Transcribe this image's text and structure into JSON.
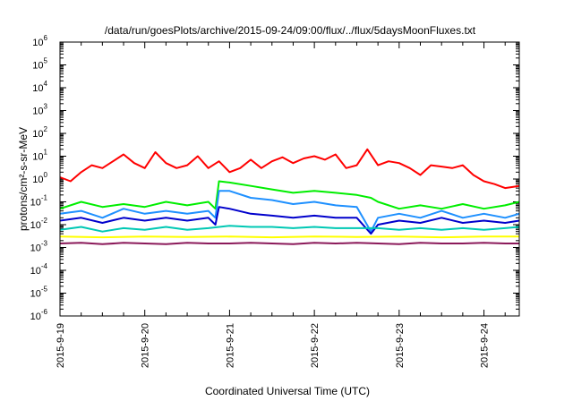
{
  "chart_data": {
    "type": "line",
    "title": "/data/run/goesPlots/archive/2015-09-24/09:00/flux/../flux/5daysMoonFluxes.txt",
    "xlabel": "Coordinated Universal Time (UTC)",
    "ylabel": "protons/cm²-s-sr-MeV",
    "y_scale": "log",
    "ylim": [
      1e-06,
      1000000.0
    ],
    "xlim": [
      "2015-09-19T00:00",
      "2015-09-24T10:00"
    ],
    "grid": false,
    "legend": "none",
    "x_tick_labels": [
      "2015-9-19",
      "2015-9-20",
      "2015-9-21",
      "2015-9-22",
      "2015-9-23",
      "2015-9-24"
    ],
    "x_ticks": [
      "2015-09-19",
      "2015-09-20",
      "2015-09-21",
      "2015-09-22",
      "2015-09-23",
      "2015-09-24"
    ],
    "y_ticks": [
      {
        "value": 1000000.0,
        "base": "10",
        "exp": "6"
      },
      {
        "value": 100000.0,
        "base": "10",
        "exp": "5"
      },
      {
        "value": 10000.0,
        "base": "10",
        "exp": "4"
      },
      {
        "value": 1000.0,
        "base": "10",
        "exp": "3"
      },
      {
        "value": 100.0,
        "base": "10",
        "exp": "2"
      },
      {
        "value": 10.0,
        "base": "10",
        "exp": "1"
      },
      {
        "value": 1.0,
        "base": "10",
        "exp": "0"
      },
      {
        "value": 0.1,
        "base": "10",
        "exp": "-1"
      },
      {
        "value": 0.01,
        "base": "10",
        "exp": "-2"
      },
      {
        "value": 0.001,
        "base": "10",
        "exp": "-3"
      },
      {
        "value": 0.0001,
        "base": "10",
        "exp": "-4"
      },
      {
        "value": 1e-05,
        "base": "10",
        "exp": "-5"
      },
      {
        "value": 1e-06,
        "base": "10",
        "exp": "-6"
      }
    ],
    "series": [
      {
        "color": "#ff0000",
        "x": [
          "2015-09-19T00:00",
          "2015-09-19T03:00",
          "2015-09-19T06:00",
          "2015-09-19T09:00",
          "2015-09-19T12:00",
          "2015-09-19T15:00",
          "2015-09-19T18:00",
          "2015-09-19T21:00",
          "2015-09-20T00:00",
          "2015-09-20T03:00",
          "2015-09-20T06:00",
          "2015-09-20T09:00",
          "2015-09-20T12:00",
          "2015-09-20T15:00",
          "2015-09-20T18:00",
          "2015-09-20T21:00",
          "2015-09-21T00:00",
          "2015-09-21T03:00",
          "2015-09-21T06:00",
          "2015-09-21T09:00",
          "2015-09-21T12:00",
          "2015-09-21T15:00",
          "2015-09-21T18:00",
          "2015-09-21T21:00",
          "2015-09-22T00:00",
          "2015-09-22T03:00",
          "2015-09-22T06:00",
          "2015-09-22T09:00",
          "2015-09-22T12:00",
          "2015-09-22T15:00",
          "2015-09-22T18:00",
          "2015-09-22T21:00",
          "2015-09-23T00:00",
          "2015-09-23T03:00",
          "2015-09-23T06:00",
          "2015-09-23T09:00",
          "2015-09-23T12:00",
          "2015-09-23T15:00",
          "2015-09-23T18:00",
          "2015-09-23T21:00",
          "2015-09-24T00:00",
          "2015-09-24T03:00",
          "2015-09-24T06:00",
          "2015-09-24T10:00"
        ],
        "values": [
          1.2,
          0.8,
          2.0,
          4.0,
          3.0,
          6.0,
          12.0,
          5.0,
          3.0,
          15.0,
          5.0,
          3.0,
          4.0,
          10.0,
          3.0,
          6.0,
          2.0,
          3.0,
          7.0,
          3.0,
          6.0,
          9.0,
          5.0,
          8.0,
          10.0,
          7.0,
          12.0,
          3.0,
          4.0,
          20.0,
          4.0,
          6.0,
          5.0,
          3.0,
          1.5,
          4.0,
          3.5,
          3.0,
          4.0,
          1.5,
          0.8,
          0.6,
          0.4,
          0.5
        ]
      },
      {
        "color": "#00ee00",
        "x": [
          "2015-09-19T00:00",
          "2015-09-19T06:00",
          "2015-09-19T12:00",
          "2015-09-19T18:00",
          "2015-09-20T00:00",
          "2015-09-20T06:00",
          "2015-09-20T12:00",
          "2015-09-20T18:00",
          "2015-09-20T20:00",
          "2015-09-20T21:00",
          "2015-09-21T00:00",
          "2015-09-21T06:00",
          "2015-09-21T12:00",
          "2015-09-21T18:00",
          "2015-09-22T00:00",
          "2015-09-22T06:00",
          "2015-09-22T12:00",
          "2015-09-22T16:00",
          "2015-09-22T18:00",
          "2015-09-23T00:00",
          "2015-09-23T06:00",
          "2015-09-23T12:00",
          "2015-09-23T18:00",
          "2015-09-24T00:00",
          "2015-09-24T06:00",
          "2015-09-24T10:00"
        ],
        "values": [
          0.05,
          0.1,
          0.06,
          0.08,
          0.06,
          0.1,
          0.07,
          0.1,
          0.05,
          0.8,
          0.7,
          0.5,
          0.35,
          0.25,
          0.3,
          0.25,
          0.2,
          0.15,
          0.1,
          0.05,
          0.07,
          0.05,
          0.08,
          0.05,
          0.07,
          0.1
        ]
      },
      {
        "color": "#1e90ff",
        "x": [
          "2015-09-19T00:00",
          "2015-09-19T06:00",
          "2015-09-19T12:00",
          "2015-09-19T18:00",
          "2015-09-20T00:00",
          "2015-09-20T06:00",
          "2015-09-20T12:00",
          "2015-09-20T18:00",
          "2015-09-20T20:00",
          "2015-09-20T21:00",
          "2015-09-21T00:00",
          "2015-09-21T06:00",
          "2015-09-21T12:00",
          "2015-09-21T18:00",
          "2015-09-22T00:00",
          "2015-09-22T06:00",
          "2015-09-22T12:00",
          "2015-09-22T16:00",
          "2015-09-22T18:00",
          "2015-09-23T00:00",
          "2015-09-23T06:00",
          "2015-09-23T12:00",
          "2015-09-23T18:00",
          "2015-09-24T00:00",
          "2015-09-24T06:00",
          "2015-09-24T10:00"
        ],
        "values": [
          0.03,
          0.04,
          0.02,
          0.05,
          0.03,
          0.04,
          0.03,
          0.04,
          0.02,
          0.3,
          0.3,
          0.15,
          0.12,
          0.08,
          0.1,
          0.07,
          0.06,
          0.005,
          0.02,
          0.03,
          0.02,
          0.04,
          0.02,
          0.03,
          0.02,
          0.03
        ]
      },
      {
        "color": "#0000cc",
        "x": [
          "2015-09-19T00:00",
          "2015-09-19T06:00",
          "2015-09-19T12:00",
          "2015-09-19T18:00",
          "2015-09-20T00:00",
          "2015-09-20T06:00",
          "2015-09-20T12:00",
          "2015-09-20T18:00",
          "2015-09-20T20:00",
          "2015-09-20T21:00",
          "2015-09-21T00:00",
          "2015-09-21T06:00",
          "2015-09-21T12:00",
          "2015-09-21T18:00",
          "2015-09-22T00:00",
          "2015-09-22T06:00",
          "2015-09-22T12:00",
          "2015-09-22T16:00",
          "2015-09-22T18:00",
          "2015-09-23T00:00",
          "2015-09-23T06:00",
          "2015-09-23T12:00",
          "2015-09-23T18:00",
          "2015-09-24T00:00",
          "2015-09-24T06:00",
          "2015-09-24T10:00"
        ],
        "values": [
          0.015,
          0.02,
          0.012,
          0.02,
          0.015,
          0.02,
          0.015,
          0.02,
          0.01,
          0.06,
          0.05,
          0.03,
          0.025,
          0.02,
          0.025,
          0.02,
          0.02,
          0.004,
          0.01,
          0.015,
          0.012,
          0.02,
          0.012,
          0.015,
          0.012,
          0.015
        ]
      },
      {
        "color": "#00c8b4",
        "x": [
          "2015-09-19T00:00",
          "2015-09-19T06:00",
          "2015-09-19T12:00",
          "2015-09-19T18:00",
          "2015-09-20T00:00",
          "2015-09-20T06:00",
          "2015-09-20T12:00",
          "2015-09-20T18:00",
          "2015-09-21T00:00",
          "2015-09-21T06:00",
          "2015-09-21T12:00",
          "2015-09-21T18:00",
          "2015-09-22T00:00",
          "2015-09-22T06:00",
          "2015-09-22T12:00",
          "2015-09-22T18:00",
          "2015-09-23T00:00",
          "2015-09-23T06:00",
          "2015-09-23T12:00",
          "2015-09-23T18:00",
          "2015-09-24T00:00",
          "2015-09-24T06:00",
          "2015-09-24T10:00"
        ],
        "values": [
          0.006,
          0.008,
          0.005,
          0.007,
          0.006,
          0.008,
          0.006,
          0.007,
          0.009,
          0.008,
          0.008,
          0.007,
          0.008,
          0.007,
          0.007,
          0.007,
          0.006,
          0.007,
          0.006,
          0.007,
          0.006,
          0.007,
          0.008
        ]
      },
      {
        "color": "#ffff00",
        "x": [
          "2015-09-19T00:00",
          "2015-09-19T12:00",
          "2015-09-20T00:00",
          "2015-09-20T12:00",
          "2015-09-21T00:00",
          "2015-09-21T12:00",
          "2015-09-22T00:00",
          "2015-09-22T12:00",
          "2015-09-23T00:00",
          "2015-09-23T12:00",
          "2015-09-24T00:00",
          "2015-09-24T10:00"
        ],
        "values": [
          0.003,
          0.0028,
          0.003,
          0.0029,
          0.003,
          0.0028,
          0.003,
          0.0029,
          0.003,
          0.0028,
          0.003,
          0.003
        ]
      },
      {
        "color": "#8b1a5a",
        "x": [
          "2015-09-19T00:00",
          "2015-09-19T06:00",
          "2015-09-19T12:00",
          "2015-09-19T18:00",
          "2015-09-20T00:00",
          "2015-09-20T06:00",
          "2015-09-20T12:00",
          "2015-09-20T18:00",
          "2015-09-21T00:00",
          "2015-09-21T06:00",
          "2015-09-21T12:00",
          "2015-09-21T18:00",
          "2015-09-22T00:00",
          "2015-09-22T06:00",
          "2015-09-22T12:00",
          "2015-09-22T18:00",
          "2015-09-23T00:00",
          "2015-09-23T06:00",
          "2015-09-23T12:00",
          "2015-09-23T18:00",
          "2015-09-24T00:00",
          "2015-09-24T06:00",
          "2015-09-24T10:00"
        ],
        "values": [
          0.0015,
          0.0016,
          0.0014,
          0.0016,
          0.0015,
          0.0014,
          0.0016,
          0.0015,
          0.0015,
          0.0016,
          0.0015,
          0.0014,
          0.0016,
          0.0015,
          0.0016,
          0.0015,
          0.0014,
          0.0016,
          0.0015,
          0.0015,
          0.0016,
          0.0015,
          0.0015
        ]
      }
    ]
  }
}
